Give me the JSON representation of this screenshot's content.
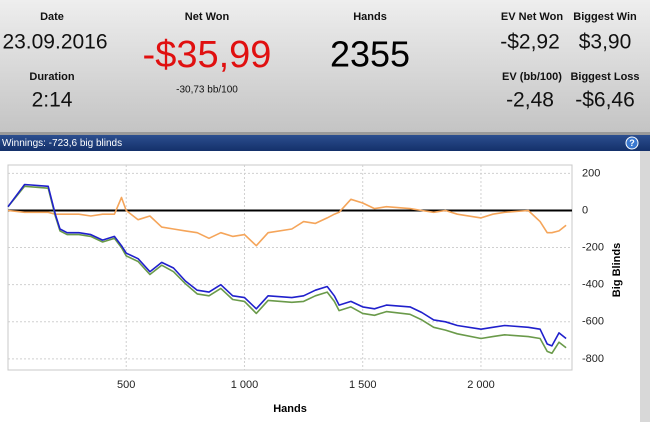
{
  "header": {
    "date": {
      "label": "Date",
      "value": "23.09.2016"
    },
    "duration": {
      "label": "Duration",
      "value": "2:14"
    },
    "net_won": {
      "label": "Net Won",
      "value": "-$35,99",
      "sub": "-30,73 bb/100"
    },
    "hands": {
      "label": "Hands",
      "value": "2355"
    },
    "ev_net_won": {
      "label": "EV Net Won",
      "value": "-$2,92"
    },
    "biggest_win": {
      "label": "Biggest Win",
      "value": "$3,90"
    },
    "ev_bb100": {
      "label": "EV (bb/100)",
      "value": "-2,48"
    },
    "biggest_loss": {
      "label": "Biggest Loss",
      "value": "-$6,46"
    }
  },
  "banner": {
    "text": "Winnings: -723,6 big blinds",
    "help": "?"
  },
  "chart_data": {
    "type": "line",
    "x_label": "Hands",
    "y_label": "Big Blinds",
    "x": [
      0,
      70,
      170,
      200,
      220,
      250,
      300,
      350,
      400,
      450,
      480,
      500,
      550,
      600,
      650,
      700,
      750,
      800,
      850,
      900,
      950,
      1000,
      1050,
      1100,
      1200,
      1250,
      1300,
      1350,
      1380,
      1400,
      1450,
      1500,
      1550,
      1600,
      1700,
      1750,
      1800,
      1850,
      1900,
      2000,
      2050,
      2100,
      2200,
      2250,
      2280,
      2300,
      2330,
      2360
    ],
    "series": [
      {
        "color": "#f5a55a",
        "values": [
          0,
          -10,
          -10,
          -20,
          -20,
          -20,
          -20,
          -30,
          -20,
          -20,
          70,
          0,
          -50,
          -30,
          -90,
          -100,
          -110,
          -120,
          -150,
          -120,
          -140,
          -130,
          -190,
          -120,
          -100,
          -60,
          -70,
          -40,
          -20,
          -10,
          60,
          40,
          10,
          20,
          10,
          0,
          -10,
          0,
          -20,
          -40,
          -20,
          -10,
          0,
          -60,
          -120,
          -120,
          -110,
          -80
        ]
      },
      {
        "color": "#6a9a4a",
        "values": [
          20,
          130,
          120,
          -30,
          -110,
          -130,
          -130,
          -140,
          -170,
          -150,
          -200,
          -245,
          -275,
          -345,
          -295,
          -330,
          -395,
          -450,
          -460,
          -420,
          -480,
          -490,
          -555,
          -485,
          -495,
          -490,
          -460,
          -440,
          -490,
          -540,
          -520,
          -555,
          -565,
          -545,
          -560,
          -590,
          -630,
          -645,
          -665,
          -690,
          -680,
          -670,
          -680,
          -690,
          -760,
          -770,
          -710,
          -740
        ]
      },
      {
        "color": "#2020cc",
        "values": [
          20,
          140,
          130,
          -20,
          -100,
          -120,
          -120,
          -130,
          -160,
          -140,
          -190,
          -230,
          -260,
          -330,
          -280,
          -310,
          -380,
          -430,
          -440,
          -400,
          -460,
          -470,
          -530,
          -460,
          -470,
          -460,
          -430,
          -410,
          -460,
          -510,
          -490,
          -520,
          -530,
          -510,
          -520,
          -550,
          -590,
          -600,
          -620,
          -640,
          -630,
          -620,
          -630,
          -640,
          -720,
          -730,
          -660,
          -690
        ]
      }
    ],
    "xlim": [
      0,
      2385
    ],
    "ylim": [
      -860,
      245
    ],
    "xticks": [
      500,
      {
        "value": 1000,
        "label": "1 000"
      },
      {
        "value": 1500,
        "label": "1 500"
      },
      {
        "value": 2000,
        "label": "2 000"
      }
    ],
    "yticks": [
      200,
      0,
      -200,
      -400,
      -600,
      -800
    ],
    "grid": true
  }
}
